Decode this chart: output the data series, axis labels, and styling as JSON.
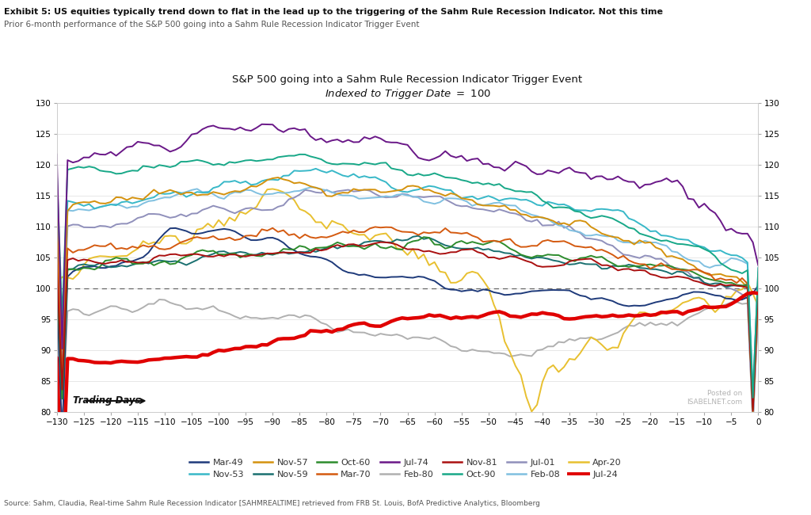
{
  "title_main": "S&P 500 going into a Sahm Rule Recession Indicator Trigger Event",
  "title_sub": "Indexed to Trigger Date = 100",
  "exhibit_title": "Exhibit 5: US equities typically trend down to flat in the lead up to the triggering of the Sahm Rule Recession Indicator. Not this time",
  "exhibit_sub": "Prior 6-month performance of the S&P 500 going into a Sahm Rule Recession Indicator Trigger Event",
  "source_text": "Source: Sahm, Claudia, Real-time Sahm Rule Recession Indicator [SAHMREALTIME] retrieved from FRB St. Louis, BofA Predictive Analytics, Bloomberg",
  "xmin": -130,
  "xmax": 0,
  "ymin": 80,
  "ymax": 130,
  "yticks": [
    80,
    85,
    90,
    95,
    100,
    105,
    110,
    115,
    120,
    125,
    130
  ],
  "xticks": [
    -130,
    -125,
    -120,
    -115,
    -110,
    -105,
    -100,
    -95,
    -90,
    -85,
    -80,
    -75,
    -70,
    -65,
    -60,
    -55,
    -50,
    -45,
    -40,
    -35,
    -30,
    -25,
    -20,
    -15,
    -10,
    -5,
    0
  ],
  "series": [
    {
      "label": "Mar-49",
      "color": "#1e3a7a",
      "lw": 1.4,
      "zorder": 6
    },
    {
      "label": "Nov-53",
      "color": "#38b8c8",
      "lw": 1.4,
      "zorder": 6
    },
    {
      "label": "Nov-57",
      "color": "#d4920e",
      "lw": 1.4,
      "zorder": 6
    },
    {
      "label": "Nov-59",
      "color": "#1a7070",
      "lw": 1.4,
      "zorder": 6
    },
    {
      "label": "Oct-60",
      "color": "#2d8c2d",
      "lw": 1.4,
      "zorder": 6
    },
    {
      "label": "Mar-70",
      "color": "#d45a10",
      "lw": 1.4,
      "zorder": 6
    },
    {
      "label": "Jul-74",
      "color": "#6a1888",
      "lw": 1.4,
      "zorder": 7
    },
    {
      "label": "Feb-80",
      "color": "#b0b0b0",
      "lw": 1.4,
      "zorder": 4
    },
    {
      "label": "Nov-81",
      "color": "#aa1010",
      "lw": 1.4,
      "zorder": 6
    },
    {
      "label": "Oct-90",
      "color": "#18a888",
      "lw": 1.4,
      "zorder": 6
    },
    {
      "label": "Jul-01",
      "color": "#9090bb",
      "lw": 1.4,
      "zorder": 5
    },
    {
      "label": "Feb-08",
      "color": "#80c0e0",
      "lw": 1.4,
      "zorder": 5
    },
    {
      "label": "Apr-20",
      "color": "#e8c030",
      "lw": 1.4,
      "zorder": 4
    },
    {
      "label": "Jul-24",
      "color": "#e00000",
      "lw": 3.2,
      "zorder": 10
    }
  ],
  "background_color": "#ffffff",
  "plot_bg": "#ffffff",
  "grid_color": "#dddddd",
  "dashed_line_y": 100
}
